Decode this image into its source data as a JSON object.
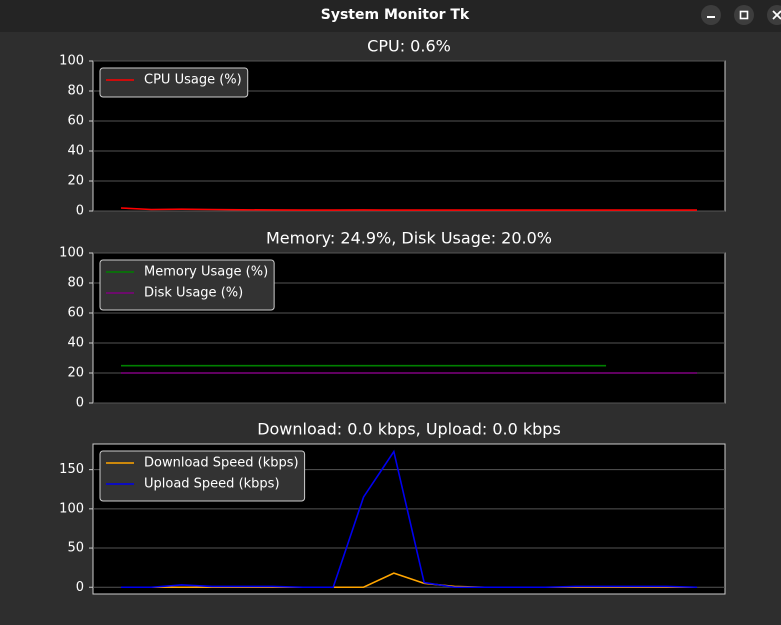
{
  "window": {
    "title": "System Monitor Tk"
  },
  "chart_data": [
    {
      "type": "line",
      "title": "CPU: 0.6%",
      "ylim": [
        0,
        100
      ],
      "yticks": [
        0,
        20,
        40,
        60,
        80,
        100
      ],
      "grid": true,
      "legend": "upper left",
      "series": [
        {
          "name": "CPU Usage (%)",
          "color": "#ff0000",
          "values": [
            2,
            1,
            1.2,
            1,
            0.8,
            0.7,
            0.6,
            0.6,
            0.7,
            0.6,
            0.6,
            0.6,
            0.6,
            0.6,
            0.6,
            0.6,
            0.6,
            0.6,
            0.6,
            0.6
          ]
        }
      ]
    },
    {
      "type": "line",
      "title": "Memory: 24.9%, Disk Usage: 20.0%",
      "ylim": [
        0,
        100
      ],
      "yticks": [
        0,
        20,
        40,
        60,
        80,
        100
      ],
      "grid": true,
      "legend": "upper left",
      "series": [
        {
          "name": "Memory Usage (%)",
          "color": "#008000",
          "values": [
            24.9,
            24.9,
            24.9,
            24.9,
            24.9,
            24.9,
            24.9,
            24.9,
            24.9,
            24.9,
            24.9,
            24.9,
            24.9,
            24.9,
            24.9,
            24.9,
            24.9,
            null,
            null,
            null
          ]
        },
        {
          "name": "Disk Usage (%)",
          "color": "#800080",
          "values": [
            20,
            20,
            20,
            20,
            20,
            20,
            20,
            20,
            20,
            20,
            20,
            20,
            20,
            20,
            20,
            20,
            20,
            20,
            20,
            20
          ]
        }
      ]
    },
    {
      "type": "line",
      "title": "Download: 0.0 kbps, Upload: 0.0 kbps",
      "ylim": [
        -8.6,
        182.7
      ],
      "yticks": [
        0,
        50,
        100,
        150
      ],
      "grid": true,
      "legend": "upper left",
      "series": [
        {
          "name": "Download Speed (kbps)",
          "color": "#ffa500",
          "values": [
            0,
            0,
            0,
            0,
            0,
            0,
            0,
            0,
            0,
            18,
            5,
            1,
            0,
            0,
            0,
            0,
            0,
            0,
            0,
            0
          ]
        },
        {
          "name": "Upload Speed (kbps)",
          "color": "#0000ee",
          "values": [
            0,
            0,
            3,
            1,
            1,
            1,
            0,
            0,
            115,
            173,
            6,
            0,
            0,
            0,
            0,
            1,
            1,
            1,
            1,
            0
          ]
        }
      ]
    }
  ]
}
